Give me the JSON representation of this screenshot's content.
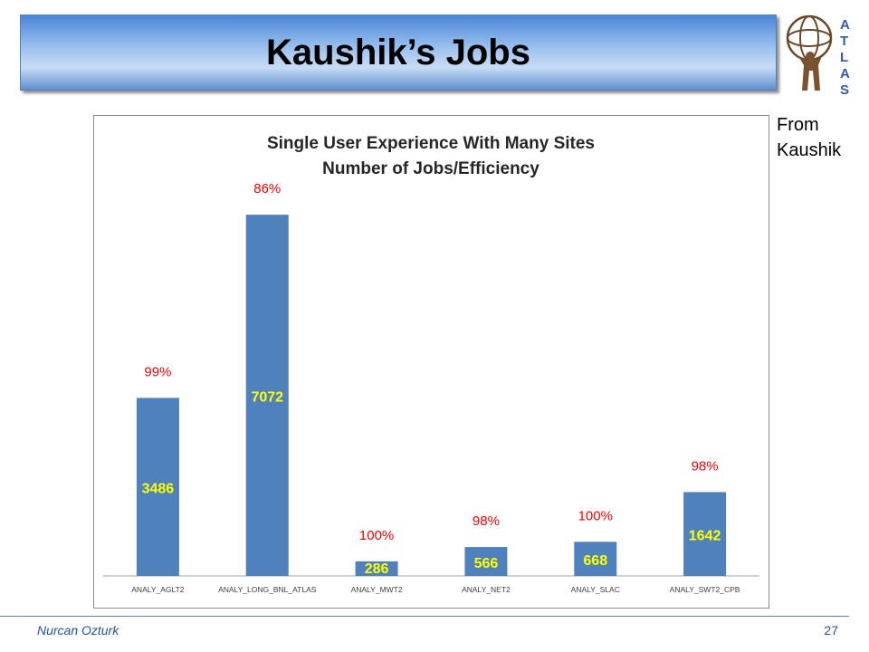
{
  "slide": {
    "title": "Kaushik’s Jobs",
    "from_note": [
      "From",
      "Kaushik"
    ],
    "author": "Nurcan Ozturk",
    "page_number": "27",
    "logo_letters": [
      "A",
      "T",
      "L",
      "A",
      "S"
    ]
  },
  "colors": {
    "bar": "#4f81bd",
    "bar_label": "#ffff00",
    "efficiency_label": "#ff0000"
  },
  "chart_data": {
    "type": "bar",
    "title": [
      "Single User Experience With Many Sites",
      "Number of Jobs/Efficiency"
    ],
    "categories": [
      "ANALY_AGLT2",
      "ANALY_LONG_BNL_ATLAS",
      "ANALY_MWT2",
      "ANALY_NET2",
      "ANALY_SLAC",
      "ANALY_SWT2_CPB"
    ],
    "values": [
      3486,
      7072,
      286,
      566,
      668,
      1642
    ],
    "efficiency": [
      "99%",
      "86%",
      "100%",
      "98%",
      "100%",
      "98%"
    ],
    "ylim": [
      0,
      7500
    ],
    "grid": false,
    "legend": "none"
  }
}
